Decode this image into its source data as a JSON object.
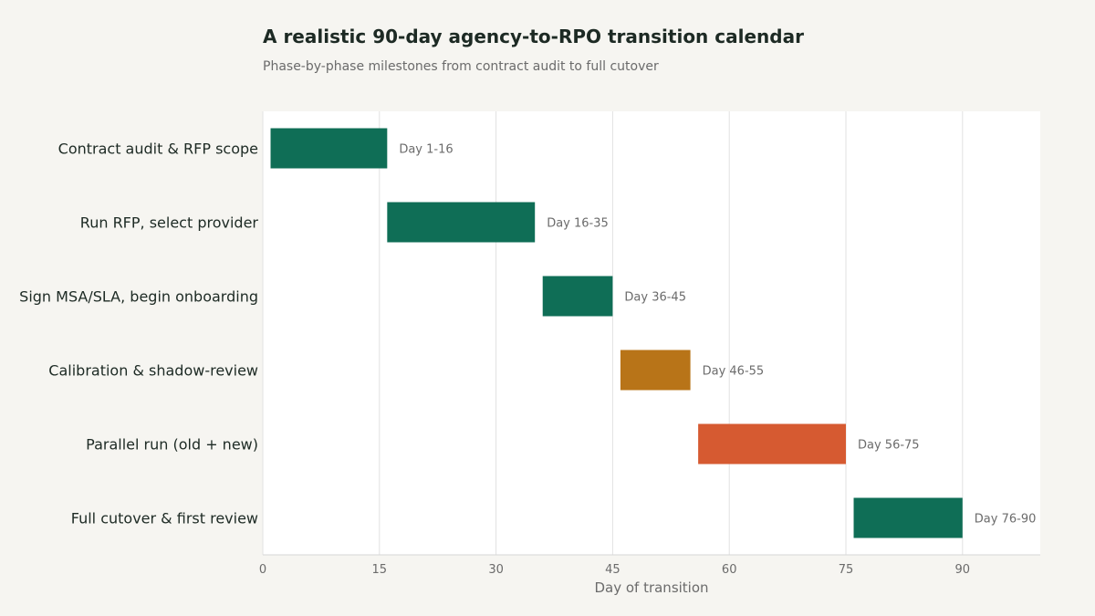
{
  "header": {
    "title": "A realistic 90-day agency-to-RPO transition calendar",
    "subtitle": "Phase-by-phase milestones from contract audit to full cutover"
  },
  "chart_data": {
    "type": "bar",
    "orientation": "horizontal",
    "title": "A realistic 90-day agency-to-RPO transition calendar",
    "subtitle": "Phase-by-phase milestones from contract audit to full cutover",
    "xlabel": "Day of transition",
    "ylabel": "",
    "xlim": [
      0,
      100
    ],
    "xticks": [
      0,
      15,
      30,
      45,
      60,
      75,
      90
    ],
    "grid": true,
    "categories": [
      "Contract audit & RFP scope",
      "Run RFP, select provider",
      "Sign MSA/SLA, begin onboarding",
      "Calibration & shadow-review",
      "Parallel run (old + new)",
      "Full cutover & first review"
    ],
    "tasks": [
      {
        "label": "Contract audit & RFP scope",
        "start": 1,
        "end": 16,
        "data_label": "Day 1-16",
        "color": "#0f6e56"
      },
      {
        "label": "Run RFP, select provider",
        "start": 16,
        "end": 35,
        "data_label": "Day 16-35",
        "color": "#0f6e56"
      },
      {
        "label": "Sign MSA/SLA, begin onboarding",
        "start": 36,
        "end": 45,
        "data_label": "Day 36-45",
        "color": "#0f6e56"
      },
      {
        "label": "Calibration & shadow-review",
        "start": 46,
        "end": 55,
        "data_label": "Day 46-55",
        "color": "#b87418"
      },
      {
        "label": "Parallel run (old + new)",
        "start": 56,
        "end": 75,
        "data_label": "Day 56-75",
        "color": "#d65a31"
      },
      {
        "label": "Full cutover & first review",
        "start": 76,
        "end": 90,
        "data_label": "Day 76-90",
        "color": "#0f6e56"
      }
    ]
  }
}
